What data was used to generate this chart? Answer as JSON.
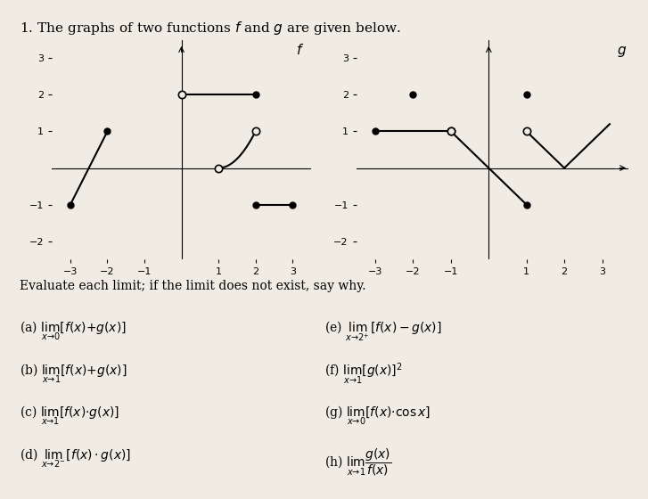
{
  "title_text": "1. The graphs of two functions $f$ and $g$ are given below.",
  "f_label": "$f$",
  "g_label": "$g$",
  "evaluate_text": "Evaluate each limit; if the limit does not exist, say why.",
  "problems": [
    "(a) $\\lim_{x \\to 0}[f(x) + g(x)]$",
    "(b) $\\lim_{x \\to 1}[f(x) + g(x)]$",
    "(c) $\\lim_{x \\to 1}[f(x) \\cdot g(x)]$",
    "(d) $\\lim_{x \\to 2^-}[f(x) \\cdot g(x)]$",
    "(e) $\\lim_{x \\to 2^+}[f(x) - g(x)]$",
    "(f) $\\lim_{x \\to 1}[g(x)]^2$",
    "(g) $\\lim_{x \\to 0}[f(x) \\cdot \\cos x]$",
    "(h) $\\lim_{x \\to 1} \\dfrac{g(x)}{f(x)}$"
  ],
  "bg_color": "#f0ece4",
  "line_color": "black",
  "dot_size": 6,
  "axis_color": "black"
}
